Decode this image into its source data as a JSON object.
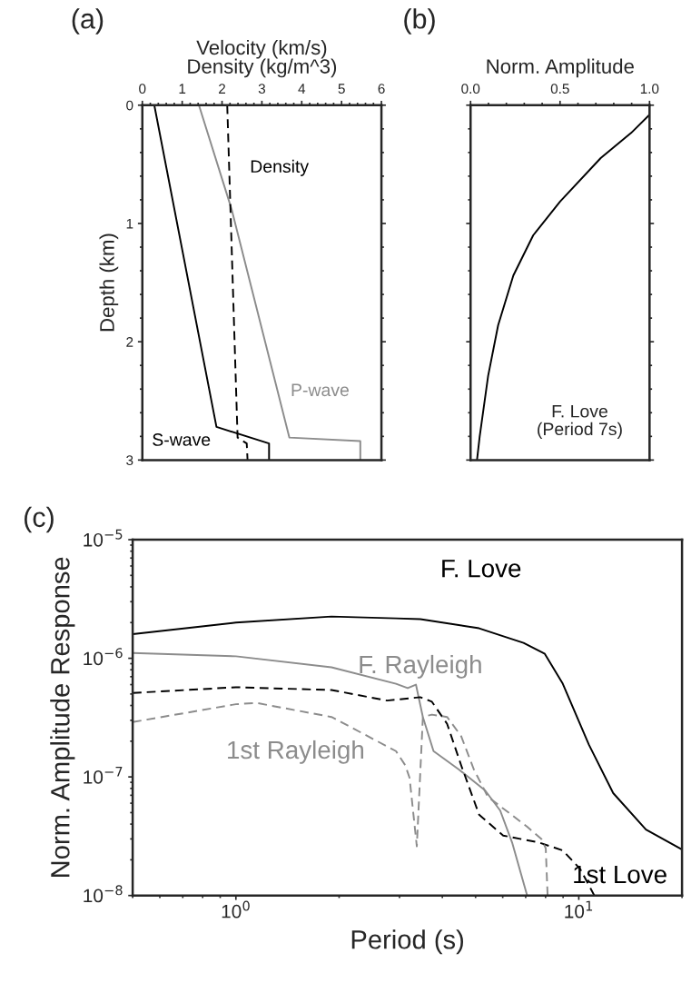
{
  "chart_data": [
    {
      "type": "line",
      "title": "(a)",
      "xlabel": "Velocity (km/s)\nDensity (kg/m^3)",
      "ylabel": "Depth (km)",
      "orientation": "horizontal",
      "xlim": [
        0,
        6
      ],
      "xticks": [
        0,
        1,
        2,
        3,
        4,
        5,
        6
      ],
      "ylim": [
        3,
        0
      ],
      "yticks": [
        0,
        1,
        2,
        3
      ],
      "grid": false,
      "legend": false,
      "series": [
        {
          "name": "S-wave",
          "color": "#000000",
          "line_style": "solid",
          "x": [
            0,
            2.72,
            2.86,
            3.0
          ],
          "values": [
            0.3,
            1.86,
            3.18,
            3.18
          ]
        },
        {
          "name": "P-wave",
          "color": "#8c8c8c",
          "line_style": "solid",
          "x": [
            0,
            0.88,
            2.81,
            2.84,
            3.0
          ],
          "values": [
            1.42,
            2.24,
            3.69,
            5.47,
            5.47
          ]
        },
        {
          "name": "Density",
          "color": "#000000",
          "line_style": "dashed",
          "x": [
            0,
            2.81,
            2.86,
            3.0
          ],
          "values": [
            2.13,
            2.39,
            2.62,
            2.64
          ]
        }
      ]
    },
    {
      "type": "line",
      "title": "(b)",
      "xlabel": "Norm. Amplitude",
      "orientation": "horizontal",
      "xlim": [
        0,
        1
      ],
      "xticks": [
        {
          "value": 0,
          "label": "0.0"
        },
        {
          "value": 0.5,
          "label": "0.5"
        },
        {
          "value": 1,
          "label": "1.0"
        }
      ],
      "ylim": [
        3,
        0
      ],
      "yticks": [
        {
          "value": 0,
          "label": null
        },
        {
          "value": 1,
          "label": null
        },
        {
          "value": 2,
          "label": null
        },
        {
          "value": 3,
          "label": null
        }
      ],
      "tick_labels": "x",
      "grid": false,
      "legend": false,
      "annotations": [
        "F. Love\n(Period 7s)"
      ],
      "series": [
        {
          "color": "#000000",
          "line_style": "solid",
          "x": [
            0.08,
            0.235,
            0.447,
            0.815,
            1.1,
            1.44,
            1.86,
            2.29,
            2.8,
            3.0
          ],
          "values": [
            1.0,
            0.897,
            0.727,
            0.5,
            0.35,
            0.239,
            0.154,
            0.098,
            0.051,
            0.036
          ]
        }
      ]
    },
    {
      "type": "line",
      "title": "(c)",
      "xlabel": "Period (s)",
      "ylabel": "Norm. Amplitude Response",
      "log": "xy",
      "xlim": [
        0.5,
        20
      ],
      "xticks": [
        {
          "value": 1,
          "label": "10$^{0}$"
        },
        {
          "value": 10,
          "label": "10$^{1}$"
        }
      ],
      "ylim": [
        1e-08,
        1e-05
      ],
      "yticks": [
        {
          "value": 1e-08,
          "label": "10$^{−8}$"
        },
        {
          "value": 1e-07,
          "label": "10$^{−7}$"
        },
        {
          "value": 1e-06,
          "label": "10$^{−6}$"
        },
        {
          "value": 1e-05,
          "label": "10$^{−5}$"
        }
      ],
      "grid": false,
      "legend": false,
      "series": [
        {
          "name": "F. Love",
          "color": "#000000",
          "line_style": "solid",
          "x": [
            0.5,
            1.0,
            1.9,
            2.93,
            3.45,
            5.12,
            6.9,
            7.96,
            8.98,
            10.7,
            12.6,
            15.7,
            19.9
          ],
          "values": [
            1.6e-06,
            2e-06,
            2.25e-06,
            2.17e-06,
            2.14e-06,
            1.79e-06,
            1.35e-06,
            1.09e-06,
            6.1e-07,
            1.87e-07,
            7.3e-08,
            3.6e-08,
            2.46e-08
          ]
        },
        {
          "name": "F. Rayleigh",
          "color": "#8c8c8c",
          "line_style": "solid",
          "x": [
            0.5,
            1.0,
            1.9,
            2.93,
            3.17,
            3.35,
            3.51,
            3.77,
            4.46,
            5.33,
            5.9,
            6.39,
            7.07
          ],
          "values": [
            1.11e-06,
            1.04e-06,
            8.4e-07,
            6.1e-07,
            5.6e-07,
            6e-07,
            3.2e-07,
            1.65e-07,
            1.16e-07,
            7.7e-08,
            5.2e-08,
            2.8e-08,
            1e-08
          ]
        },
        {
          "name": "1st Love",
          "color": "#000000",
          "line_style": "dashed",
          "x": [
            0.5,
            1.0,
            1.9,
            2.76,
            3.45,
            3.73,
            4.13,
            4.54,
            5.12,
            6.02,
            7.64,
            8.98,
            10.1,
            11.1
          ],
          "values": [
            5.1e-07,
            5.7e-07,
            5.4e-07,
            4.4e-07,
            4.7e-07,
            4.3e-07,
            2.8e-07,
            1.25e-07,
            4.8e-08,
            3.2e-08,
            2.8e-08,
            2.4e-08,
            1.67e-08,
            1e-08
          ]
        },
        {
          "name": "1st Rayleigh",
          "color": "#8c8c8c",
          "line_style": "dashed",
          "x": [
            0.5,
            1.0,
            1.15,
            1.9,
            2.93,
            3.12,
            3.21,
            3.37,
            3.51,
            3.73,
            4.13,
            4.54,
            4.94,
            5.43,
            7.07,
            7.78,
            8.01,
            8.11
          ],
          "values": [
            2.9e-07,
            4.1e-07,
            4.2e-07,
            3.2e-07,
            1.65e-07,
            1.25e-07,
            9.8e-08,
            2.6e-08,
            3.2e-07,
            3.35e-07,
            3.2e-07,
            2.2e-07,
            1.16e-07,
            6.8e-08,
            3.8e-08,
            3e-08,
            2.5e-08,
            1e-08
          ]
        }
      ]
    }
  ]
}
